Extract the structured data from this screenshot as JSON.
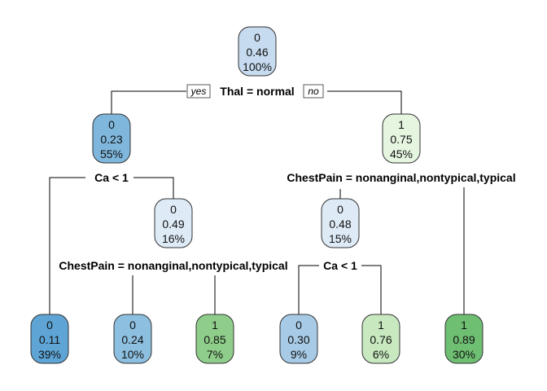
{
  "tree": {
    "yes_label": "yes",
    "no_label": "no",
    "nodes": [
      {
        "id": "n1",
        "cls": "0",
        "prob": "0.46",
        "pct": "100%",
        "color": "#c6dbef"
      },
      {
        "id": "n2",
        "cls": "0",
        "prob": "0.23",
        "pct": "55%",
        "color": "#7fb7dc"
      },
      {
        "id": "n3",
        "cls": "1",
        "prob": "0.75",
        "pct": "45%",
        "color": "#e5f5e0"
      },
      {
        "id": "n4",
        "cls": "0",
        "prob": "0.11",
        "pct": "39%",
        "color": "#5ea5d6"
      },
      {
        "id": "n5",
        "cls": "0",
        "prob": "0.49",
        "pct": "16%",
        "color": "#deebf7"
      },
      {
        "id": "n6",
        "cls": "0",
        "prob": "0.48",
        "pct": "15%",
        "color": "#deebf7"
      },
      {
        "id": "n7",
        "cls": "1",
        "prob": "0.89",
        "pct": "30%",
        "color": "#6fbf73"
      },
      {
        "id": "n10",
        "cls": "0",
        "prob": "0.24",
        "pct": "10%",
        "color": "#8dbfe0"
      },
      {
        "id": "n11",
        "cls": "1",
        "prob": "0.85",
        "pct": "7%",
        "color": "#8fce8a"
      },
      {
        "id": "n12",
        "cls": "0",
        "prob": "0.30",
        "pct": "9%",
        "color": "#a7cbe7"
      },
      {
        "id": "n13",
        "cls": "1",
        "prob": "0.76",
        "pct": "6%",
        "color": "#c8e9bf"
      }
    ],
    "splits": {
      "root": "Thal = normal",
      "left": "Ca < 1",
      "right": "ChestPain = nonanginal,nontypical,typical",
      "left_right": "ChestPain = nonanginal,nontypical,typical",
      "right_left": "Ca < 1"
    }
  }
}
